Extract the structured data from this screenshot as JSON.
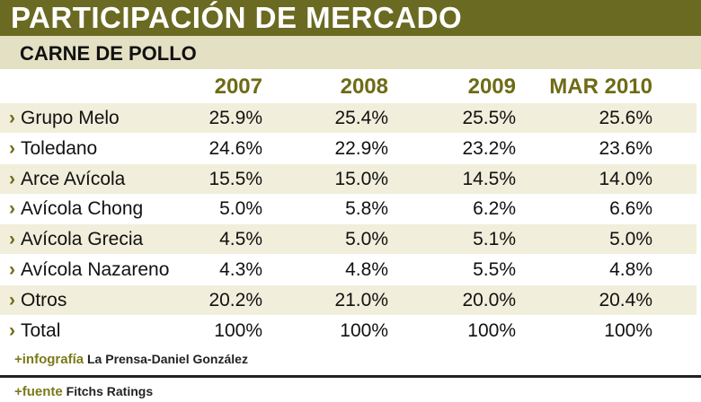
{
  "title": "PARTICIPACIÓN DE MERCADO",
  "subtitle": "CARNE DE POLLO",
  "colors": {
    "title_bg": "#6b6a22",
    "subtitle_bg": "#e4e0c4",
    "row_shade": "#f1eedb",
    "accent": "#6e6b16"
  },
  "columns": [
    "2007",
    "2008",
    "2009",
    "MAR 2010"
  ],
  "arrow_icon": "›",
  "rows": [
    {
      "label": "Grupo Melo",
      "values": [
        "25.9%",
        "25.4%",
        "25.5%",
        "25.6%"
      ]
    },
    {
      "label": "Toledano",
      "values": [
        "24.6%",
        "22.9%",
        "23.2%",
        "23.6%"
      ]
    },
    {
      "label": "Arce Avícola",
      "values": [
        "15.5%",
        "15.0%",
        "14.5%",
        "14.0%"
      ]
    },
    {
      "label": "Avícola Chong",
      "values": [
        "5.0%",
        "5.8%",
        "6.2%",
        "6.6%"
      ]
    },
    {
      "label": "Avícola Grecia",
      "values": [
        "4.5%",
        "5.0%",
        "5.1%",
        "5.0%"
      ]
    },
    {
      "label": "Avícola Nazareno",
      "values": [
        "4.3%",
        "4.8%",
        "5.5%",
        "4.8%"
      ]
    },
    {
      "label": "Otros",
      "values": [
        "20.2%",
        "21.0%",
        "20.0%",
        "20.4%"
      ]
    },
    {
      "label": "Total",
      "values": [
        "100%",
        "100%",
        "100%",
        "100%"
      ]
    }
  ],
  "credits": {
    "infografia_key": "+infografía",
    "infografia_value": "La Prensa-Daniel González",
    "fuente_key": "+fuente",
    "fuente_value": "Fitchs Ratings"
  }
}
